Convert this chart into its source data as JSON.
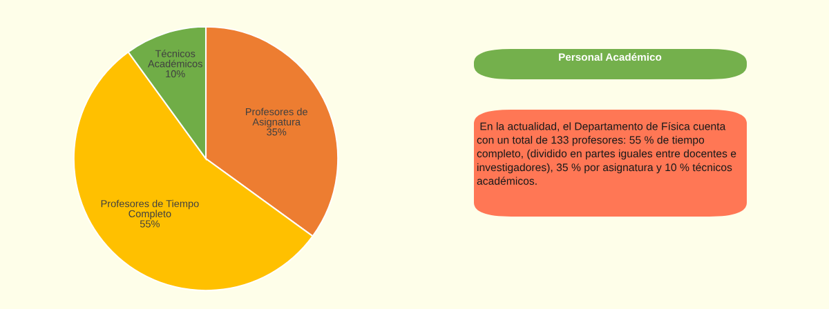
{
  "chart_data": [
    {
      "type": "pie",
      "categories": [
        "Profesores de\nAsignatura",
        "Profesores de Tiempo\nCompleto",
        "Técnicos\nAcadémicos"
      ],
      "values": [
        35,
        55,
        10
      ],
      "value_labels": [
        "35%",
        "55%",
        "10%"
      ],
      "colors": [
        "#ed7d31",
        "#ffc000",
        "#70ad47"
      ],
      "legend": false
    },
    {
      "type": "other",
      "title": "Personal Académico",
      "annotations": [
        " En la actualidad, el Departamento de Física cuenta\ncon un total de 133 profesores: 55 % de tiempo\ncompleto, (dividido en partes iguales entre docentes e\ninvestigadores), 35 % por asignatura y 10 % técnicos\nacadémicos."
      ]
    }
  ]
}
